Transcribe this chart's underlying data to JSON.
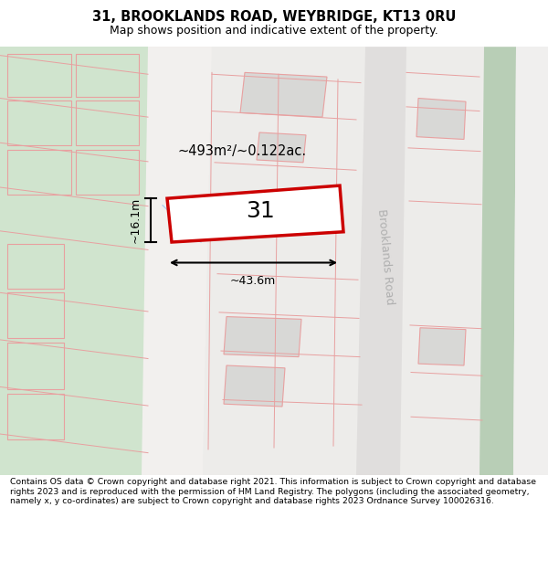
{
  "title_line1": "31, BROOKLANDS ROAD, WEYBRIDGE, KT13 0RU",
  "title_line2": "Map shows position and indicative extent of the property.",
  "footer_text": "Contains OS data © Crown copyright and database right 2021. This information is subject to Crown copyright and database rights 2023 and is reproduced with the permission of HM Land Registry. The polygons (including the associated geometry, namely x, y co-ordinates) are subject to Crown copyright and database rights 2023 Ordnance Survey 100026316.",
  "property_label": "31",
  "area_label": "~493m²/~0.122ac.",
  "width_label": "~43.6m",
  "height_label": "~16.1m",
  "road_label": "Brooklands Road",
  "bg_color": "#ffffff",
  "map_bg": "#eeeeec",
  "green_fill": "#d0e4ce",
  "block_fill": "#d8d8d6",
  "pink_line": "#e8a0a0",
  "red_line": "#cc0000",
  "road_green": "#b8ceb6",
  "prop_fill": "#ffffff"
}
